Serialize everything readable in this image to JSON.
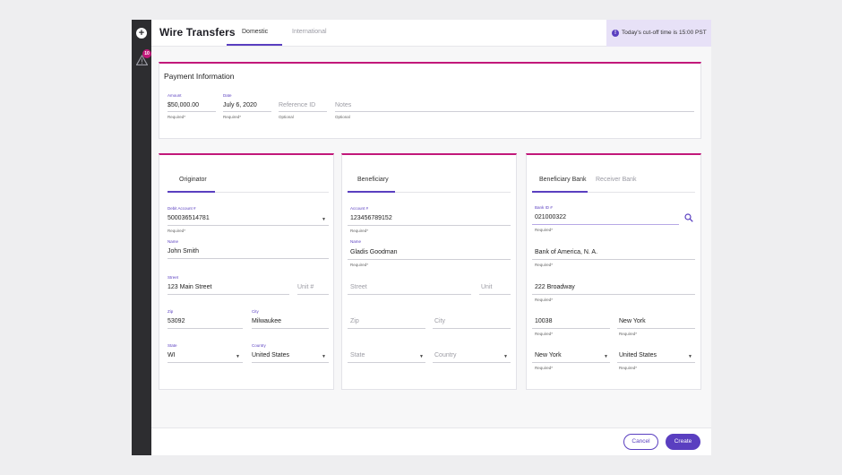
{
  "rail": {
    "plus_glyph": "+",
    "alert_count": "10"
  },
  "header": {
    "title": "Wire Transfers",
    "tabs": [
      "Domestic",
      "International"
    ],
    "cutoff": "Today's cut-off time is 15:00 PST"
  },
  "payment": {
    "title": "Payment Information",
    "amount_label": "Amount",
    "amount": "$50,000.00",
    "amount_hint": "Required*",
    "date_label": "Date",
    "date": "July 6, 2020",
    "date_hint": "Required*",
    "reference_placeholder": "Reference ID",
    "reference_hint": "Optional",
    "notes_placeholder": "Notes",
    "notes_hint": "Optional"
  },
  "originator": {
    "tab": "Originator",
    "debit_label": "Debit Account #",
    "debit": "500036514781",
    "debit_hint": "Required*",
    "name_label": "Name",
    "name": "John Smith",
    "street_label": "Street",
    "street": "123 Main Street",
    "unit_placeholder": "Unit #",
    "zip_label": "Zip",
    "zip": "53092",
    "city_label": "City",
    "city": "Milwaukee",
    "state_label": "State",
    "state": "WI",
    "country_label": "Country",
    "country": "United States"
  },
  "beneficiary": {
    "tab": "Beneficiary",
    "account_label": "Account #",
    "account": "123456789152",
    "account_hint": "Required*",
    "name_label": "Name",
    "name": "Gladis Goodman",
    "name_hint": "Required*",
    "street_placeholder": "Street",
    "unit_placeholder": "Unit",
    "zip_placeholder": "Zip",
    "city_placeholder": "City",
    "state_placeholder": "State",
    "country_placeholder": "Country"
  },
  "bank": {
    "tabs": [
      "Beneficiary Bank",
      "Receiver Bank"
    ],
    "bank_id_label": "Bank ID #",
    "bank_id": "021000322",
    "bank_id_hint": "Required*",
    "bank_name": "Bank of America, N. A.",
    "bank_name_hint": "Required*",
    "street": "222 Broadway",
    "street_hint": "Required*",
    "zip": "10038",
    "zip_hint": "Required*",
    "city": "New York",
    "city_hint": "Required*",
    "state": "New York",
    "state_hint": "Required*",
    "country": "United States",
    "country_hint": "Required*"
  },
  "footer": {
    "cancel": "Cancel",
    "create": "Create"
  },
  "colors": {
    "accent": "#5a3fc0",
    "magenta": "#c2187a",
    "rail": "#2d2d30"
  }
}
